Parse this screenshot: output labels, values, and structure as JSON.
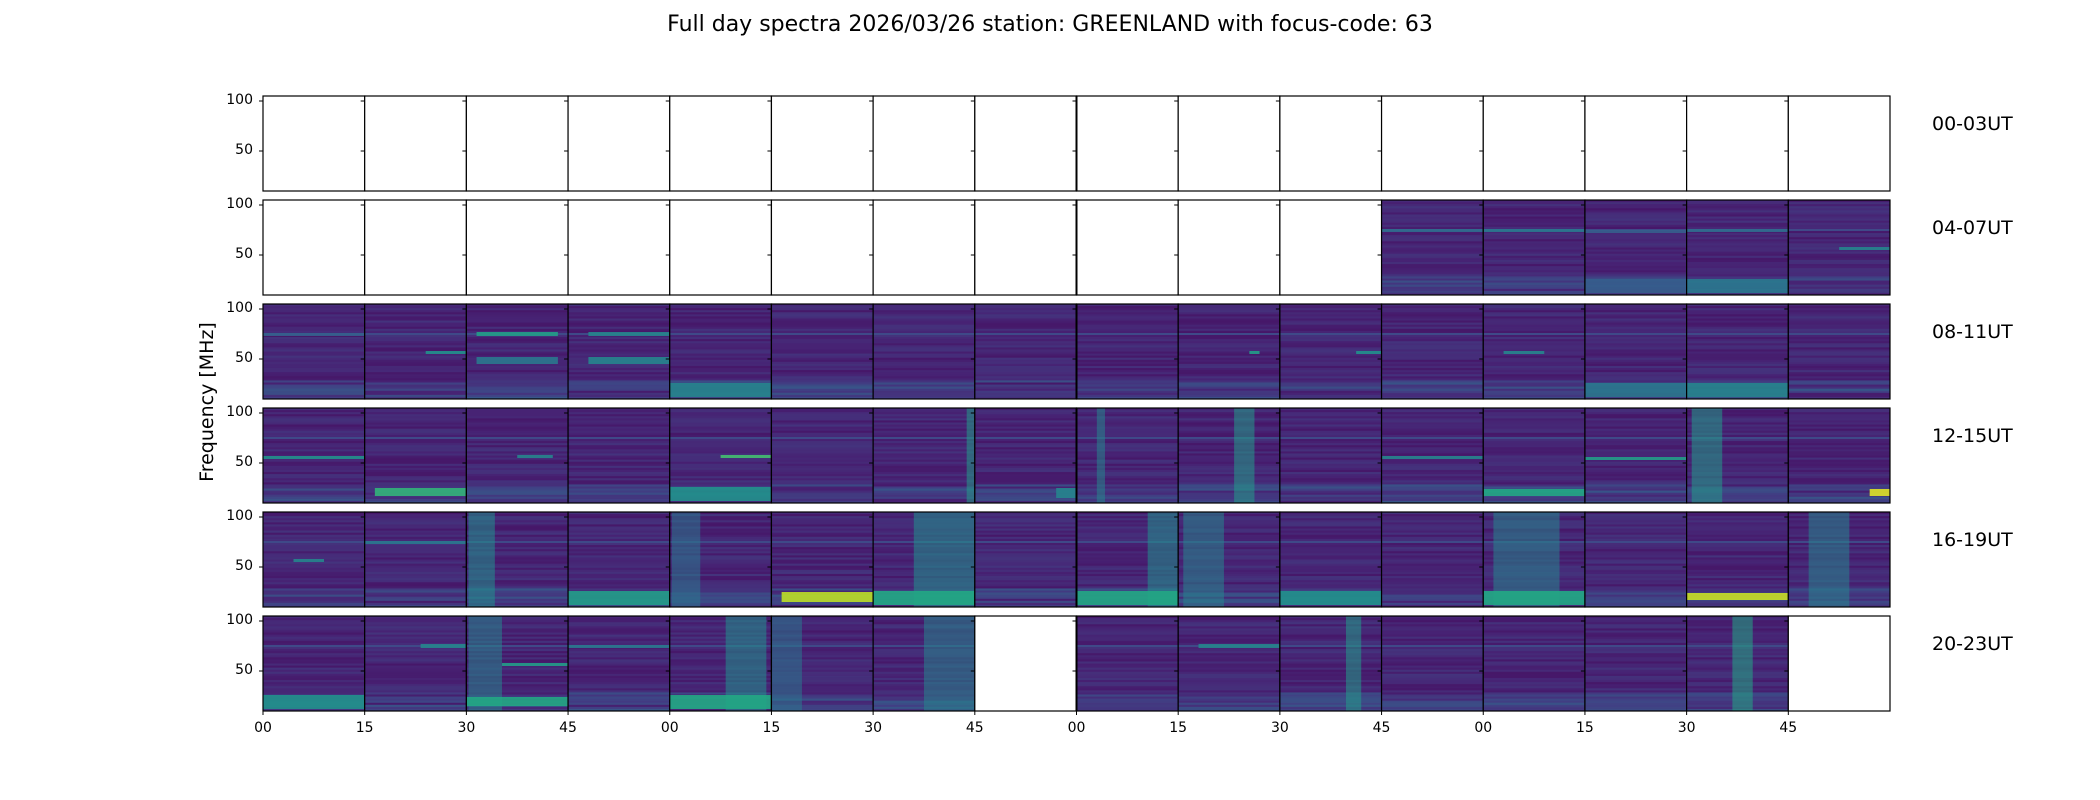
{
  "chart_data": {
    "type": "heatmap",
    "title": "Full day spectra 2026/03/26 station: GREENLAND with focus-code: 63",
    "xlabel": "",
    "ylabel": "Frequency [MHz]",
    "ylim": [
      10,
      105
    ],
    "yticks": [
      "100",
      "50"
    ],
    "ytick_values": [
      100,
      50
    ],
    "xticks": [
      "00",
      "15",
      "30",
      "45",
      "00",
      "15",
      "30",
      "45",
      "00",
      "15",
      "30",
      "45",
      "00",
      "15",
      "30",
      "45"
    ],
    "colormap": "viridis",
    "panels_per_row": 16,
    "minutes_per_panel": 15,
    "rows": [
      {
        "label": "00-03UT",
        "available": [
          false,
          false,
          false,
          false,
          false,
          false,
          false,
          false,
          false,
          false,
          false,
          false,
          false,
          false,
          false,
          false
        ],
        "features": []
      },
      {
        "label": "04-07UT",
        "available": [
          false,
          false,
          false,
          false,
          false,
          false,
          false,
          false,
          false,
          false,
          false,
          true,
          true,
          true,
          true,
          true
        ],
        "features": [
          {
            "panel": 11,
            "type": "hline",
            "freq": 75,
            "level": 0.35
          },
          {
            "panel": 12,
            "type": "hline",
            "freq": 75,
            "level": 0.4
          },
          {
            "panel": 13,
            "type": "hline",
            "freq": 74,
            "level": 0.3
          },
          {
            "panel": 14,
            "type": "hline",
            "freq": 75,
            "level": 0.35
          },
          {
            "panel": 15,
            "type": "block",
            "freq": [
              55,
              58
            ],
            "t": [
              0.5,
              1
            ],
            "level": 0.45
          },
          {
            "panel": 13,
            "type": "lowband",
            "level": 0.3
          },
          {
            "panel": 14,
            "type": "lowband",
            "level": 0.4
          }
        ]
      },
      {
        "label": "08-11UT",
        "available": [
          true,
          true,
          true,
          true,
          true,
          true,
          true,
          true,
          true,
          true,
          true,
          true,
          true,
          true,
          true,
          true
        ],
        "features": [
          {
            "panel": 0,
            "type": "hline",
            "freq": 75,
            "level": 0.3
          },
          {
            "panel": 1,
            "type": "block",
            "freq": [
              55,
              58
            ],
            "t": [
              0.6,
              1
            ],
            "level": 0.5
          },
          {
            "panel": 2,
            "type": "block",
            "freq": [
              73,
              77
            ],
            "t": [
              0.1,
              0.9
            ],
            "level": 0.55
          },
          {
            "panel": 2,
            "type": "block",
            "freq": [
              45,
              52
            ],
            "t": [
              0.1,
              0.9
            ],
            "level": 0.4
          },
          {
            "panel": 3,
            "type": "block",
            "freq": [
              73,
              77
            ],
            "t": [
              0.2,
              1
            ],
            "level": 0.45
          },
          {
            "panel": 3,
            "type": "block",
            "freq": [
              45,
              52
            ],
            "t": [
              0.2,
              1
            ],
            "level": 0.45
          },
          {
            "panel": 4,
            "type": "lowband",
            "level": 0.45
          },
          {
            "panel": 9,
            "type": "block",
            "freq": [
              55,
              58
            ],
            "t": [
              0.7,
              0.8
            ],
            "level": 0.55
          },
          {
            "panel": 10,
            "type": "block",
            "freq": [
              55,
              58
            ],
            "t": [
              0.75,
              1
            ],
            "level": 0.5
          },
          {
            "panel": 12,
            "type": "block",
            "freq": [
              55,
              58
            ],
            "t": [
              0.2,
              0.6
            ],
            "level": 0.45
          },
          {
            "panel": 13,
            "type": "lowband",
            "level": 0.4
          },
          {
            "panel": 14,
            "type": "lowband",
            "level": 0.45
          }
        ]
      },
      {
        "label": "12-15UT",
        "available": [
          true,
          true,
          true,
          true,
          true,
          true,
          true,
          true,
          true,
          true,
          true,
          true,
          true,
          true,
          true,
          true
        ],
        "features": [
          {
            "panel": 0,
            "type": "hline",
            "freq": 56,
            "level": 0.5
          },
          {
            "panel": 1,
            "type": "block",
            "freq": [
              17,
              25
            ],
            "t": [
              0.1,
              1
            ],
            "level": 0.65
          },
          {
            "panel": 2,
            "type": "block",
            "freq": [
              55,
              58
            ],
            "t": [
              0.5,
              0.85
            ],
            "level": 0.45
          },
          {
            "panel": 4,
            "type": "block",
            "freq": [
              55,
              58
            ],
            "t": [
              0.5,
              1
            ],
            "level": 0.7
          },
          {
            "panel": 4,
            "type": "lowband",
            "level": 0.5
          },
          {
            "panel": 6,
            "type": "vband",
            "t": [
              0.92,
              1
            ],
            "level": 0.55
          },
          {
            "panel": 7,
            "type": "block",
            "freq": [
              15,
              25
            ],
            "t": [
              0.8,
              1
            ],
            "level": 0.45
          },
          {
            "panel": 8,
            "type": "vband",
            "t": [
              0.2,
              0.28
            ],
            "level": 0.45
          },
          {
            "panel": 9,
            "type": "vband",
            "t": [
              0.55,
              0.75
            ],
            "level": 0.55
          },
          {
            "panel": 11,
            "type": "hline",
            "freq": 56,
            "level": 0.45
          },
          {
            "panel": 12,
            "type": "block",
            "freq": [
              17,
              24
            ],
            "t": [
              0,
              1
            ],
            "level": 0.6
          },
          {
            "panel": 13,
            "type": "hline",
            "freq": 55,
            "level": 0.55
          },
          {
            "panel": 14,
            "type": "vband",
            "t": [
              0.05,
              0.35
            ],
            "level": 0.55
          },
          {
            "panel": 15,
            "type": "block",
            "freq": [
              17,
              24
            ],
            "t": [
              0.8,
              1
            ],
            "level": 0.95
          }
        ]
      },
      {
        "label": "16-19UT",
        "available": [
          true,
          true,
          true,
          true,
          true,
          true,
          true,
          true,
          true,
          true,
          true,
          true,
          true,
          true,
          true,
          true
        ],
        "features": [
          {
            "panel": 0,
            "type": "block",
            "freq": [
              55,
              58
            ],
            "t": [
              0.3,
              0.6
            ],
            "level": 0.45
          },
          {
            "panel": 1,
            "type": "hline",
            "freq": 75,
            "level": 0.4
          },
          {
            "panel": 2,
            "type": "vband",
            "t": [
              0.02,
              0.28
            ],
            "level": 0.5
          },
          {
            "panel": 3,
            "type": "lowband",
            "level": 0.55
          },
          {
            "panel": 4,
            "type": "vband",
            "t": [
              0.02,
              0.3
            ],
            "level": 0.4
          },
          {
            "panel": 5,
            "type": "block",
            "freq": [
              15,
              25
            ],
            "t": [
              0.1,
              1
            ],
            "level": 0.9
          },
          {
            "panel": 6,
            "type": "vband",
            "t": [
              0.4,
              1
            ],
            "level": 0.5
          },
          {
            "panel": 6,
            "type": "lowband",
            "level": 0.6
          },
          {
            "panel": 8,
            "type": "vband",
            "t": [
              0.7,
              1
            ],
            "level": 0.5
          },
          {
            "panel": 8,
            "type": "lowband",
            "level": 0.6
          },
          {
            "panel": 9,
            "type": "vband",
            "t": [
              0.05,
              0.45
            ],
            "level": 0.45
          },
          {
            "panel": 10,
            "type": "lowband",
            "level": 0.5
          },
          {
            "panel": 12,
            "type": "vband",
            "t": [
              0.1,
              0.75
            ],
            "level": 0.45
          },
          {
            "panel": 12,
            "type": "lowband",
            "level": 0.6
          },
          {
            "panel": 14,
            "type": "block",
            "freq": [
              17,
              24
            ],
            "t": [
              0,
              1
            ],
            "level": 0.92
          },
          {
            "panel": 15,
            "type": "vband",
            "t": [
              0.2,
              0.6
            ],
            "level": 0.45
          }
        ]
      },
      {
        "label": "20-23UT",
        "available": [
          true,
          true,
          true,
          true,
          true,
          true,
          true,
          false,
          true,
          true,
          true,
          true,
          true,
          true,
          true,
          false
        ],
        "features": [
          {
            "panel": 0,
            "type": "lowband",
            "level": 0.5
          },
          {
            "panel": 1,
            "type": "block",
            "freq": [
              73,
              77
            ],
            "t": [
              0.55,
              1
            ],
            "level": 0.45
          },
          {
            "panel": 2,
            "type": "vband",
            "t": [
              0.02,
              0.35
            ],
            "level": 0.45
          },
          {
            "panel": 2,
            "type": "block",
            "freq": [
              55,
              58
            ],
            "t": [
              0.35,
              1
            ],
            "level": 0.55
          },
          {
            "panel": 2,
            "type": "block",
            "freq": [
              15,
              24
            ],
            "t": [
              0,
              1
            ],
            "level": 0.6
          },
          {
            "panel": 3,
            "type": "hline",
            "freq": 75,
            "level": 0.4
          },
          {
            "panel": 4,
            "type": "vband",
            "t": [
              0.55,
              0.95
            ],
            "level": 0.5
          },
          {
            "panel": 4,
            "type": "lowband",
            "level": 0.6
          },
          {
            "panel": 5,
            "type": "vband",
            "t": [
              0,
              0.3
            ],
            "level": 0.4
          },
          {
            "panel": 6,
            "type": "vband",
            "t": [
              0.5,
              1
            ],
            "level": 0.45
          },
          {
            "panel": 9,
            "type": "block",
            "freq": [
              73,
              77
            ],
            "t": [
              0.2,
              1
            ],
            "level": 0.45
          },
          {
            "panel": 10,
            "type": "vband",
            "t": [
              0.65,
              0.8
            ],
            "level": 0.55
          },
          {
            "panel": 14,
            "type": "vband",
            "t": [
              0.45,
              0.65
            ],
            "level": 0.6
          }
        ]
      }
    ]
  }
}
